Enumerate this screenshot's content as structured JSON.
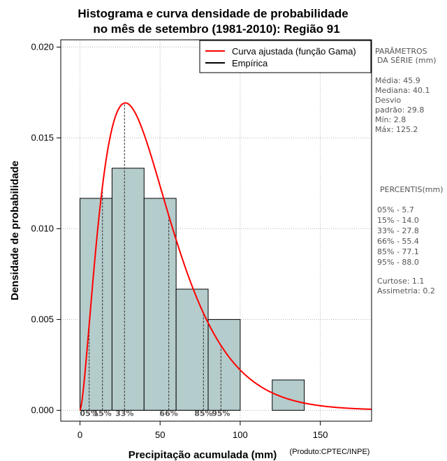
{
  "chart_data": {
    "type": "bar",
    "title_line1": "Histograma e curva densidade de probabilidade",
    "title_line2": "no mês de setembro (1981-2010): Região 91",
    "xlabel": "Precipitação acumulada (mm)",
    "ylabel": "Densidade de probabilidade",
    "credit": "(Produto:CPTEC/INPE)",
    "xlim": [
      -12,
      182
    ],
    "ylim": [
      -0.0006,
      0.0204
    ],
    "xticks": [
      0,
      50,
      100,
      150
    ],
    "xtick_labels": [
      "0",
      "50",
      "100",
      "150"
    ],
    "yticks": [
      0.0,
      0.005,
      0.01,
      0.015,
      0.02
    ],
    "ytick_labels": [
      "0.000",
      "0.005",
      "0.010",
      "0.015",
      "0.020"
    ],
    "grid": true,
    "bins": [
      {
        "start": 0,
        "end": 20,
        "density": 0.01167
      },
      {
        "start": 20,
        "end": 40,
        "density": 0.01333
      },
      {
        "start": 40,
        "end": 60,
        "density": 0.01167
      },
      {
        "start": 60,
        "end": 80,
        "density": 0.00667
      },
      {
        "start": 80,
        "end": 100,
        "density": 0.005
      },
      {
        "start": 100,
        "end": 120,
        "density": 0.0
      },
      {
        "start": 120,
        "end": 140,
        "density": 0.00167
      }
    ],
    "gamma_fit": {
      "shape": 2.6,
      "scale": 17.7
    },
    "percentile_markers": [
      {
        "label": "05%",
        "x": 5.7
      },
      {
        "label": "15%",
        "x": 14.0
      },
      {
        "label": "33%",
        "x": 27.8
      },
      {
        "label": "66%",
        "x": 55.4
      },
      {
        "label": "85%",
        "x": 77.1
      },
      {
        "label": "95%",
        "x": 88.0
      }
    ],
    "legend": {
      "position": "top-right",
      "entries": [
        {
          "label": "Curva ajustada (função Gama)",
          "color": "#ff0000"
        },
        {
          "label": "Empírica",
          "color": "#000000"
        }
      ]
    },
    "colors": {
      "bar_fill": "#b5cccc",
      "curve": "#ff0000",
      "grid": "#b3b3b3"
    }
  },
  "side_panel": {
    "params_title_1": "PARÂMETROS",
    "params_title_2": "DA SÉRIE (mm)",
    "media": "Média:  45.9",
    "mediana": "Mediana:  40.1",
    "desvio_1": "Desvio",
    "desvio_2": "padrão:  29.8",
    "min": "Mín:  2.8",
    "max": "Máx:  125.2",
    "percentis_title": "PERCENTIS(mm)",
    "p05": "05% -   5.7",
    "p15": "15% -  14.0",
    "p33": "33% -  27.8",
    "p66": "66% -  55.4",
    "p85": "85% -  77.1",
    "p95": "95% -  88.0",
    "curtose": "Curtose:  1.1",
    "assimetria": "Assimetria:  0.2"
  }
}
